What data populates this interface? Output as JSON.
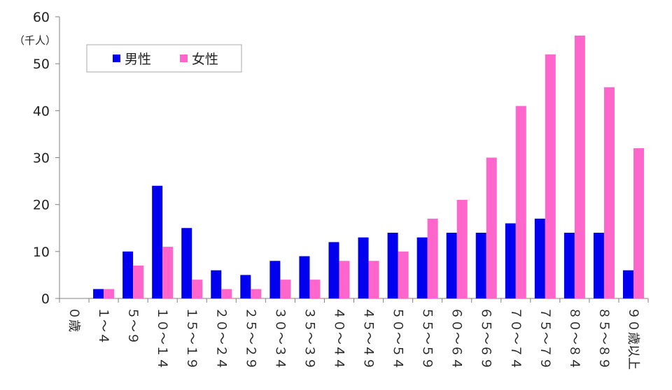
{
  "chart_data": {
    "type": "bar",
    "unit_label": "（千人）",
    "ylim": [
      0,
      60
    ],
    "yticks": [
      0,
      10,
      20,
      30,
      40,
      50,
      60
    ],
    "grid": false,
    "legend_position": "top-left",
    "categories": [
      "０歳",
      "１～４",
      "５～９",
      "１０～１４",
      "１５～１９",
      "２０～２４",
      "２５～２９",
      "３０～３４",
      "３５～３９",
      "４０～４４",
      "４５～４９",
      "５０～５４",
      "５５～５９",
      "６０～６４",
      "６５～６９",
      "７０～７４",
      "７５～７９",
      "８０～８４",
      "８５～８９",
      "９０歳以上"
    ],
    "series": [
      {
        "name": "男性",
        "color": "#0000ee",
        "values": [
          0,
          2,
          10,
          24,
          15,
          6,
          5,
          8,
          9,
          12,
          13,
          14,
          13,
          14,
          14,
          16,
          17,
          14,
          14,
          6
        ]
      },
      {
        "name": "女性",
        "color": "#ff66cc",
        "values": [
          0,
          2,
          7,
          11,
          4,
          2,
          2,
          4,
          4,
          8,
          8,
          10,
          17,
          21,
          30,
          41,
          52,
          56,
          45,
          32
        ]
      }
    ]
  }
}
